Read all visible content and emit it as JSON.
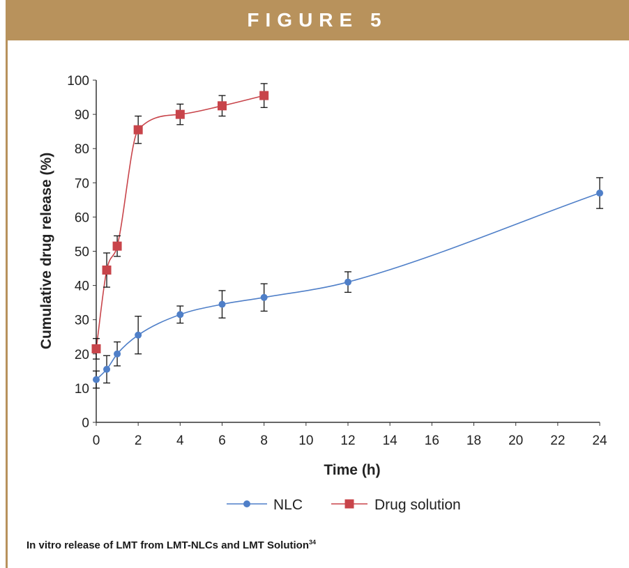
{
  "header": {
    "title": "FIGURE 5"
  },
  "caption": {
    "text": "In vitro release of LMT from LMT-NLCs and LMT Solution",
    "superscript": "34"
  },
  "colors": {
    "header_bg": "#b8925c",
    "nlc": "#4f7fc8",
    "drug_solution": "#c8444a",
    "axis": "#333333"
  },
  "chart_data": {
    "type": "line",
    "xlabel": "Time (h)",
    "ylabel": "Cumulative drug release (%)",
    "xlim": [
      0,
      24
    ],
    "ylim": [
      0,
      100
    ],
    "xticks": [
      0,
      2,
      4,
      6,
      8,
      10,
      12,
      14,
      16,
      18,
      20,
      22,
      24
    ],
    "yticks": [
      0,
      10,
      20,
      30,
      40,
      50,
      60,
      70,
      80,
      90,
      100
    ],
    "grid": false,
    "legend": "bottom",
    "series": [
      {
        "name": "NLC",
        "marker": "circle",
        "color": "#4f7fc8",
        "x": [
          0,
          0.5,
          1,
          2,
          4,
          6,
          8,
          12,
          24
        ],
        "y": [
          12.5,
          15.5,
          20,
          25.5,
          31.5,
          34.5,
          36.5,
          41,
          67
        ],
        "err": [
          2.5,
          4,
          3.5,
          5.5,
          2.5,
          4,
          4,
          3,
          4.5
        ]
      },
      {
        "name": "Drug solution",
        "marker": "square",
        "color": "#c8444a",
        "x": [
          0,
          0.5,
          1,
          2,
          4,
          6,
          8
        ],
        "y": [
          21.5,
          44.5,
          51.5,
          85.5,
          90,
          92.5,
          95.5
        ],
        "err": [
          3,
          5,
          3,
          4,
          3,
          3,
          3.5
        ]
      }
    ]
  }
}
